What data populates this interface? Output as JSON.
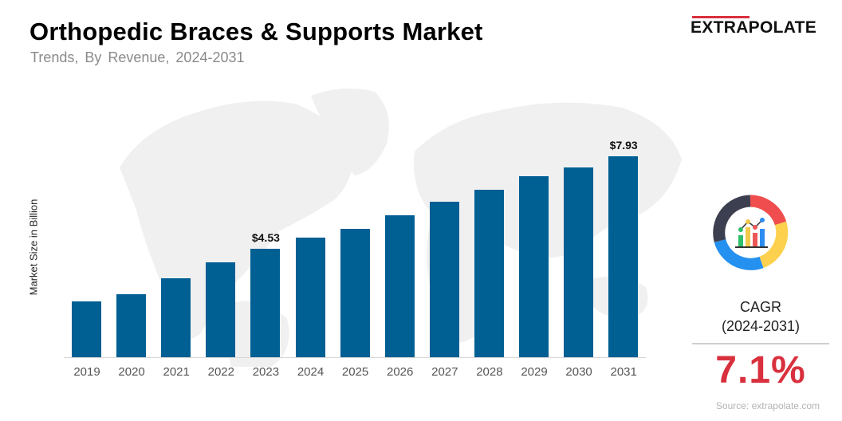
{
  "header": {
    "title": "Orthopedic Braces & Supports Market",
    "subtitle": "Trends, By Revenue, 2024-2031"
  },
  "brand": {
    "logo_text": "EXTRAPOLATE",
    "accent_color": "#d9303e"
  },
  "sidebar": {
    "icon": "analytics-donut-icon",
    "cagr_label": "CAGR",
    "cagr_period": "(2024-2031)",
    "cagr_value": "7.1%",
    "source": "Source: extrapolate.com"
  },
  "colors": {
    "bar": "#005f93",
    "cagr": "#d9303e"
  },
  "chart_data": {
    "type": "bar",
    "title": "Orthopedic Braces & Supports Market",
    "subtitle": "Trends, By Revenue, 2024-2031",
    "xlabel": "",
    "ylabel": "Market Size in Billion",
    "categories": [
      "2019",
      "2020",
      "2021",
      "2022",
      "2023",
      "2024",
      "2025",
      "2026",
      "2027",
      "2028",
      "2029",
      "2030",
      "2031"
    ],
    "values": [
      2.59,
      2.86,
      3.44,
      4.03,
      4.53,
      4.94,
      5.26,
      5.76,
      6.26,
      6.7,
      7.2,
      7.52,
      7.93
    ],
    "data_labels": {
      "2023": "$4.53",
      "2031": "$7.93"
    },
    "grid": false,
    "legend": null,
    "annotations": [
      "CAGR (2024-2031) 7.1%"
    ]
  }
}
